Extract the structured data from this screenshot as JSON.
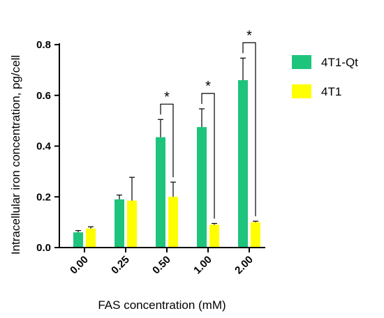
{
  "chart_data": {
    "type": "bar",
    "xlabel": "FAS concentration (mM)",
    "ylabel": "Intracellular iron concentration, pg/cell",
    "ylim": [
      0,
      0.8
    ],
    "yticks": [
      "0.0",
      "0.2",
      "0.4",
      "0.6",
      "0.8"
    ],
    "categories": [
      "0.00",
      "0.25",
      "0.50",
      "1.00",
      "2.00"
    ],
    "series": [
      {
        "name": "4T1-Qt",
        "color": "#1ec47b",
        "values": [
          0.06,
          0.19,
          0.435,
          0.475,
          0.66
        ],
        "errors": [
          0.007,
          0.017,
          0.07,
          0.072,
          0.087
        ]
      },
      {
        "name": "4T1",
        "color": "#ffff00",
        "values": [
          0.075,
          0.185,
          0.2,
          0.09,
          0.1
        ],
        "errors": [
          0.007,
          0.092,
          0.058,
          0.005,
          0.004
        ]
      }
    ],
    "significance": [
      {
        "category": "0.50",
        "label": "*"
      },
      {
        "category": "1.00",
        "label": "*"
      },
      {
        "category": "2.00",
        "label": "*"
      }
    ],
    "legend_position": "top-right",
    "grid": false
  }
}
